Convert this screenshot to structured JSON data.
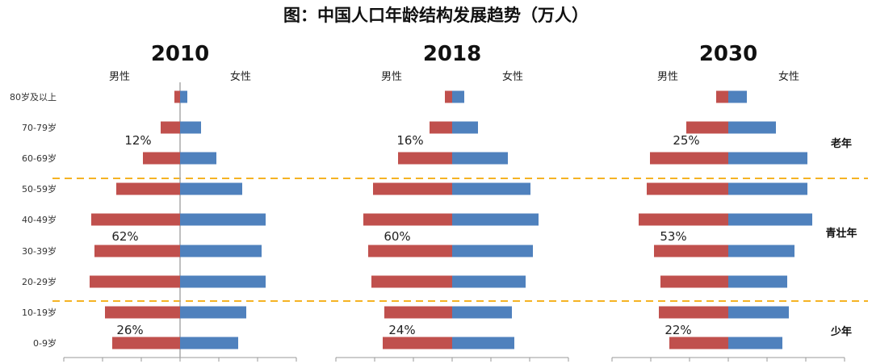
{
  "chart_data": {
    "type": "bar",
    "orientation": "horizontal-pyramid",
    "title": "图：中国人口年龄结构发展趋势（万人）",
    "categories": [
      "80岁及以上",
      "70-79岁",
      "60-69岁",
      "50-59岁",
      "40-49岁",
      "30-39岁",
      "20-29岁",
      "10-19岁",
      "0-9岁"
    ],
    "series_labels": {
      "male": "男性",
      "female": "女性"
    },
    "colors": {
      "male": "#c0504d",
      "female": "#4f81bd",
      "divider": "#f5b324"
    },
    "xlim": [
      -150,
      150
    ],
    "grid": false,
    "groups": [
      "老年",
      "青壮年",
      "少年"
    ],
    "panels": [
      {
        "year": "2010",
        "male": [
          7,
          24,
          46,
          79,
          110,
          106,
          112,
          93,
          84
        ],
        "female": [
          9,
          26,
          45,
          77,
          106,
          101,
          106,
          82,
          72
        ],
        "shares": [
          "12%",
          "62%",
          "26%"
        ]
      },
      {
        "year": "2018",
        "male": [
          9,
          28,
          67,
          98,
          110,
          104,
          100,
          84,
          86
        ],
        "female": [
          15,
          32,
          69,
          97,
          107,
          100,
          91,
          74,
          77
        ],
        "shares": [
          "16%",
          "60%",
          "24%"
        ]
      },
      {
        "year": "2030",
        "male": [
          15,
          52,
          97,
          101,
          111,
          92,
          84,
          86,
          73
        ],
        "female": [
          23,
          59,
          98,
          98,
          104,
          82,
          73,
          75,
          67
        ],
        "shares": [
          "25%",
          "53%",
          "22%"
        ]
      }
    ]
  }
}
